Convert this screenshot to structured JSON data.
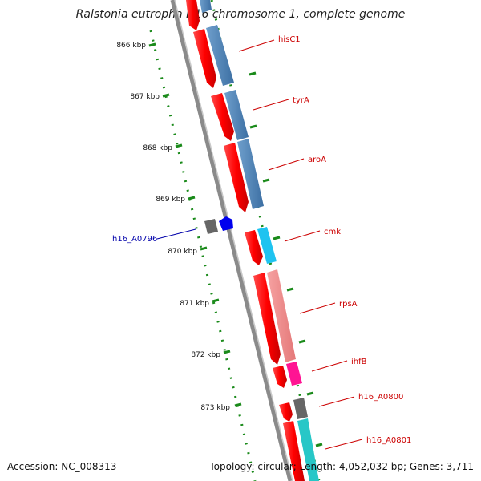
{
  "title": "Ralstonia eutropha H16 chromosome 1, complete genome",
  "footer": {
    "accession": "Accession: NC_008313",
    "summary": "Topology: circular; Length: 4,052,032 bp; Genes: 3,711"
  },
  "ruler": {
    "labels": [
      "866 kbp",
      "867 kbp",
      "868 kbp",
      "869 kbp",
      "870 kbp",
      "871 kbp",
      "872 kbp",
      "873 kbp"
    ],
    "color": "#1a8a1a"
  },
  "genes": [
    {
      "label": "hisC1",
      "color": "#cc0000"
    },
    {
      "label": "tyrA",
      "color": "#cc0000"
    },
    {
      "label": "aroA",
      "color": "#cc0000"
    },
    {
      "label": "cmk",
      "color": "#cc0000"
    },
    {
      "label": "rpsA",
      "color": "#cc0000"
    },
    {
      "label": "ihfB",
      "color": "#cc0000"
    },
    {
      "label": "h16_A0800",
      "color": "#cc0000"
    },
    {
      "label": "h16_A0801",
      "color": "#cc0000"
    },
    {
      "label": "h16_A0796",
      "color": "#0000aa"
    }
  ],
  "colors": {
    "strand_forward": "#ff0000",
    "backbone": "#888888",
    "cds_steelblue": "#4a7fb5",
    "cds_cyan": "#1fc3f0",
    "cds_salmon": "#f08a8a",
    "cds_magenta": "#ff1493",
    "cds_gray": "#666666",
    "cds_teal": "#27c7c7",
    "reverse_blue": "#0000ee"
  }
}
